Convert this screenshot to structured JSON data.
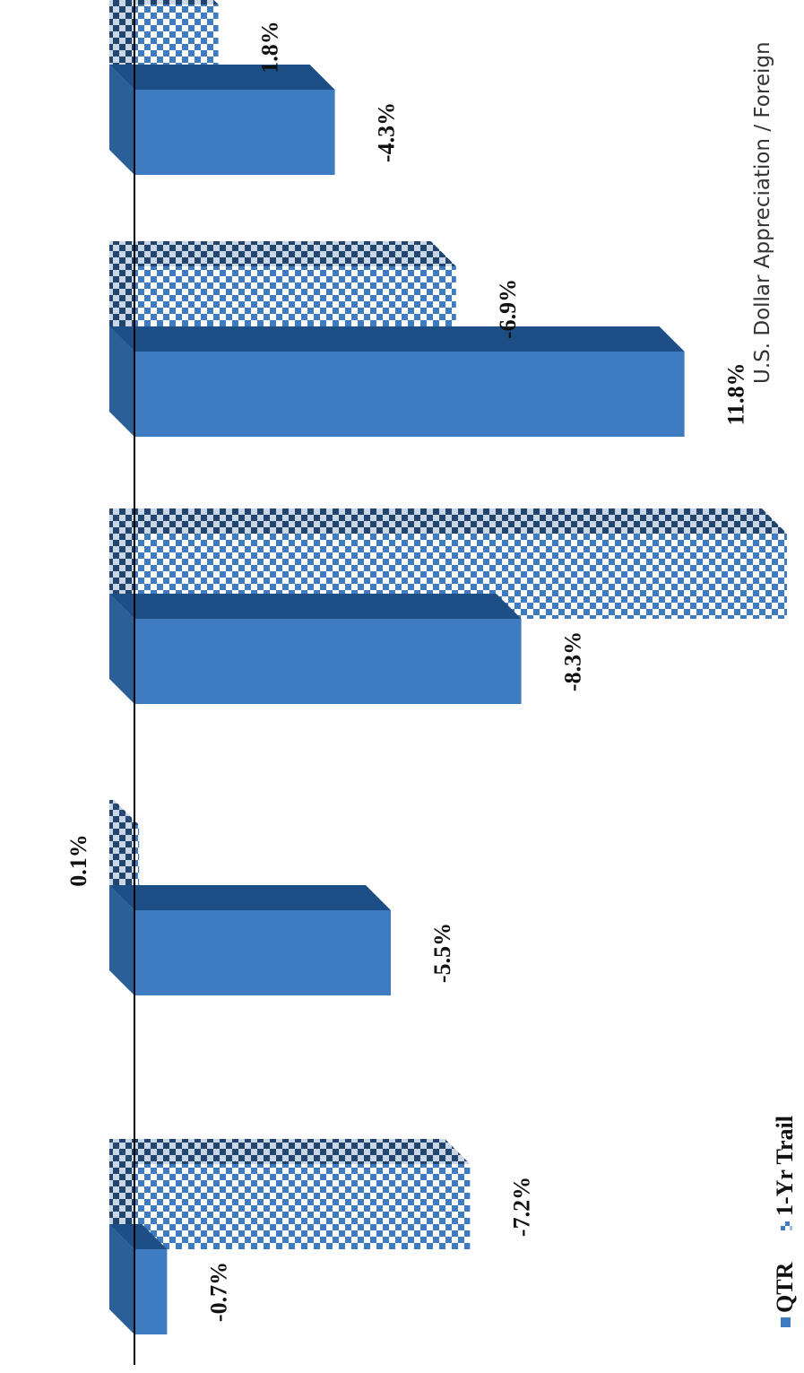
{
  "chart_data": {
    "type": "bar",
    "orientation": "horizontal-bars (figure rotated 90 degrees counter-clockwise)",
    "style": "3d",
    "categories": [
      "",
      "",
      "",
      "",
      ""
    ],
    "series": [
      {
        "name": "QTR",
        "values": [
          -0.7,
          -5.5,
          -8.3,
          11.8,
          -4.3
        ],
        "labels": [
          "-0.7%",
          "-5.5%",
          "-8.3%",
          "11.8%",
          "-4.3%"
        ],
        "pattern": "solid",
        "color": "#3f7bc0"
      },
      {
        "name": "1-Yr Trail",
        "values": [
          -7.2,
          0.1,
          -14,
          -6.9,
          1.8
        ],
        "labels": [
          "-7.2%",
          "0.1%",
          "",
          "-6.9%",
          "1.8%"
        ],
        "pattern": "checkered",
        "color": "#3f7bc0"
      }
    ],
    "legend": {
      "position": "bottom-left",
      "items": [
        "QTR",
        "1-Yr Trail"
      ]
    },
    "axis_title": "U.S. Dollar Appreciation / Foreign"
  }
}
